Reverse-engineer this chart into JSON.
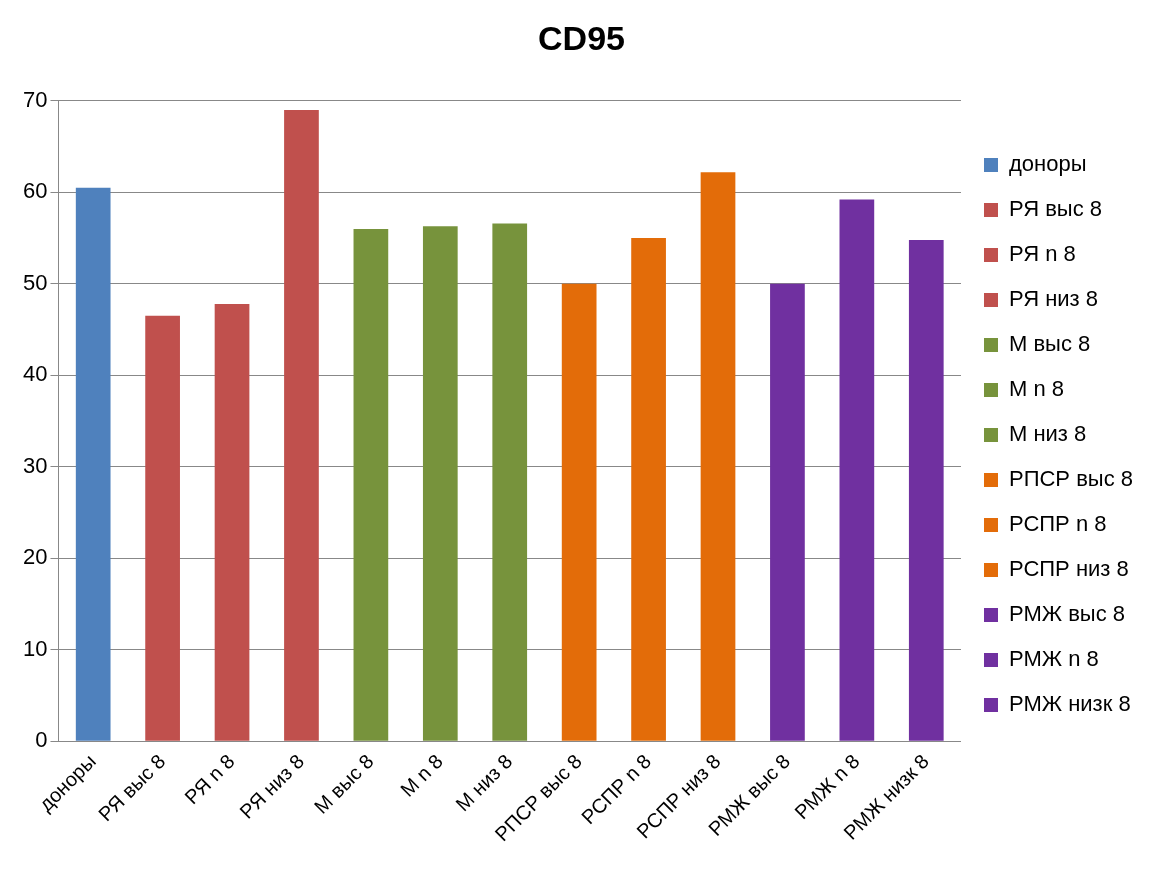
{
  "chart_data": {
    "type": "bar",
    "title": "CD95",
    "categories": [
      "доноры",
      "РЯ выс 8",
      "РЯ n 8",
      "РЯ низ 8",
      "М выс 8",
      "М n 8",
      "М низ 8",
      "РПСР выс 8",
      "РСПР n 8",
      "РСПР низ 8",
      "РМЖ выс 8",
      "РМЖ n 8",
      "РМЖ низк 8"
    ],
    "series": [
      {
        "name": "доноры",
        "color": "#4f81bd",
        "values": [
          60.5,
          null,
          null,
          null,
          null,
          null,
          null,
          null,
          null,
          null,
          null,
          null,
          null
        ]
      },
      {
        "name": "РЯ выс 8",
        "color": "#c0504d",
        "values": [
          null,
          46.5,
          null,
          null,
          null,
          null,
          null,
          null,
          null,
          null,
          null,
          null,
          null
        ]
      },
      {
        "name": "РЯ n 8",
        "color": "#c0504d",
        "values": [
          null,
          null,
          47.8,
          null,
          null,
          null,
          null,
          null,
          null,
          null,
          null,
          null,
          null
        ]
      },
      {
        "name": "РЯ низ 8",
        "color": "#c0504d",
        "values": [
          null,
          null,
          null,
          69,
          null,
          null,
          null,
          null,
          null,
          null,
          null,
          null,
          null
        ]
      },
      {
        "name": "М выс 8",
        "color": "#77933c",
        "values": [
          null,
          null,
          null,
          null,
          56,
          null,
          null,
          null,
          null,
          null,
          null,
          null,
          null
        ]
      },
      {
        "name": "М n 8",
        "color": "#77933c",
        "values": [
          null,
          null,
          null,
          null,
          null,
          56.3,
          null,
          null,
          null,
          null,
          null,
          null,
          null
        ]
      },
      {
        "name": "М низ 8",
        "color": "#77933c",
        "values": [
          null,
          null,
          null,
          null,
          null,
          null,
          56.6,
          null,
          null,
          null,
          null,
          null,
          null
        ]
      },
      {
        "name": "РПСР выс 8",
        "color": "#e36c09",
        "values": [
          null,
          null,
          null,
          null,
          null,
          null,
          null,
          50,
          null,
          null,
          null,
          null,
          null
        ]
      },
      {
        "name": "РСПР n 8",
        "color": "#e36c09",
        "values": [
          null,
          null,
          null,
          null,
          null,
          null,
          null,
          null,
          55,
          null,
          null,
          null,
          null
        ]
      },
      {
        "name": "РСПР низ 8",
        "color": "#e36c09",
        "values": [
          null,
          null,
          null,
          null,
          null,
          null,
          null,
          null,
          null,
          62.2,
          null,
          null,
          null
        ]
      },
      {
        "name": "РМЖ выс 8",
        "color": "#7030a0",
        "values": [
          null,
          null,
          null,
          null,
          null,
          null,
          null,
          null,
          null,
          null,
          50,
          null,
          null
        ]
      },
      {
        "name": "РМЖ n 8",
        "color": "#7030a0",
        "values": [
          null,
          null,
          null,
          null,
          null,
          null,
          null,
          null,
          null,
          null,
          null,
          59.2,
          null
        ]
      },
      {
        "name": "РМЖ низк 8",
        "color": "#7030a0",
        "values": [
          null,
          null,
          null,
          null,
          null,
          null,
          null,
          null,
          null,
          null,
          null,
          null,
          54.8
        ]
      }
    ],
    "ylim": [
      0,
      70
    ],
    "yticks": [
      0,
      10,
      20,
      30,
      40,
      50,
      60,
      70
    ],
    "grid": "y",
    "legend": "right"
  }
}
